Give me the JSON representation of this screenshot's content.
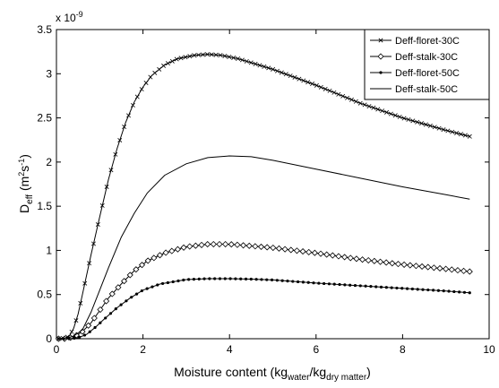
{
  "chart_data": {
    "type": "line",
    "title": "",
    "xlabel": {
      "main": "Moisture content (kg",
      "sub1": "water",
      "mid": "/kg",
      "sub2": "dry matter",
      "end": ")"
    },
    "ylabel": {
      "main": "D",
      "sub": "eff",
      "unit_open": " (m",
      "sup": "2",
      "unit_mid": "s",
      "sup2": "-1",
      "unit_close": ")"
    },
    "y_multiplier": {
      "base": "x 10",
      "exp": "-9"
    },
    "xlim": [
      0,
      10
    ],
    "ylim": [
      0,
      3.5
    ],
    "x_ticks": [
      0,
      2,
      4,
      6,
      8,
      10
    ],
    "y_ticks": [
      0,
      0.5,
      1,
      1.5,
      2,
      2.5,
      3,
      3.5
    ],
    "x_tick_labels": [
      "0",
      "2",
      "4",
      "6",
      "8",
      "10"
    ],
    "y_tick_labels": [
      "0",
      "0.5",
      "1",
      "1.5",
      "2",
      "2.5",
      "3",
      "3.5"
    ],
    "grid": false,
    "legend_position": "top-right",
    "series": [
      {
        "name": "Deff-floret-30C",
        "marker": "x",
        "points": [
          [
            0.05,
            0.0
          ],
          [
            0.2,
            0.01
          ],
          [
            0.3,
            0.03
          ],
          [
            0.4,
            0.12
          ],
          [
            0.5,
            0.28
          ],
          [
            0.6,
            0.5
          ],
          [
            0.8,
            0.95
          ],
          [
            1.0,
            1.38
          ],
          [
            1.2,
            1.8
          ],
          [
            1.4,
            2.15
          ],
          [
            1.6,
            2.45
          ],
          [
            1.8,
            2.68
          ],
          [
            2.0,
            2.85
          ],
          [
            2.2,
            2.98
          ],
          [
            2.5,
            3.1
          ],
          [
            2.8,
            3.17
          ],
          [
            3.2,
            3.21
          ],
          [
            3.5,
            3.22
          ],
          [
            3.8,
            3.21
          ],
          [
            4.2,
            3.17
          ],
          [
            5.0,
            3.05
          ],
          [
            6.0,
            2.87
          ],
          [
            7.0,
            2.67
          ],
          [
            8.0,
            2.5
          ],
          [
            9.0,
            2.36
          ],
          [
            9.55,
            2.29
          ]
        ]
      },
      {
        "name": "Deff-stalk-30C",
        "marker": "diamond",
        "points": [
          [
            0.05,
            0.0
          ],
          [
            0.2,
            0.0
          ],
          [
            0.4,
            0.02
          ],
          [
            0.6,
            0.08
          ],
          [
            0.8,
            0.18
          ],
          [
            1.0,
            0.32
          ],
          [
            1.2,
            0.46
          ],
          [
            1.5,
            0.62
          ],
          [
            1.8,
            0.77
          ],
          [
            2.1,
            0.88
          ],
          [
            2.5,
            0.97
          ],
          [
            3.0,
            1.04
          ],
          [
            3.5,
            1.07
          ],
          [
            4.0,
            1.07
          ],
          [
            4.5,
            1.05
          ],
          [
            5.0,
            1.03
          ],
          [
            6.0,
            0.97
          ],
          [
            7.0,
            0.9
          ],
          [
            8.0,
            0.84
          ],
          [
            9.0,
            0.79
          ],
          [
            9.55,
            0.76
          ]
        ]
      },
      {
        "name": "Deff-floret-50C",
        "marker": "dot",
        "points": [
          [
            0.05,
            0.0
          ],
          [
            0.3,
            0.0
          ],
          [
            0.5,
            0.01
          ],
          [
            0.7,
            0.05
          ],
          [
            0.9,
            0.13
          ],
          [
            1.1,
            0.22
          ],
          [
            1.4,
            0.35
          ],
          [
            1.7,
            0.46
          ],
          [
            2.0,
            0.55
          ],
          [
            2.4,
            0.62
          ],
          [
            3.0,
            0.67
          ],
          [
            3.5,
            0.68
          ],
          [
            4.0,
            0.68
          ],
          [
            4.5,
            0.675
          ],
          [
            5.0,
            0.665
          ],
          [
            6.0,
            0.63
          ],
          [
            7.0,
            0.6
          ],
          [
            8.0,
            0.57
          ],
          [
            9.0,
            0.54
          ],
          [
            9.55,
            0.52
          ]
        ]
      },
      {
        "name": "Deff-stalk-50C",
        "marker": "none",
        "points": [
          [
            0.05,
            0.0
          ],
          [
            0.2,
            0.0
          ],
          [
            0.4,
            0.03
          ],
          [
            0.6,
            0.1
          ],
          [
            0.8,
            0.3
          ],
          [
            1.0,
            0.55
          ],
          [
            1.2,
            0.8
          ],
          [
            1.5,
            1.15
          ],
          [
            1.8,
            1.42
          ],
          [
            2.1,
            1.65
          ],
          [
            2.5,
            1.85
          ],
          [
            3.0,
            1.98
          ],
          [
            3.5,
            2.05
          ],
          [
            4.0,
            2.07
          ],
          [
            4.5,
            2.06
          ],
          [
            5.0,
            2.02
          ],
          [
            6.0,
            1.92
          ],
          [
            7.0,
            1.82
          ],
          [
            8.0,
            1.72
          ],
          [
            9.0,
            1.63
          ],
          [
            9.55,
            1.58
          ]
        ]
      }
    ]
  }
}
